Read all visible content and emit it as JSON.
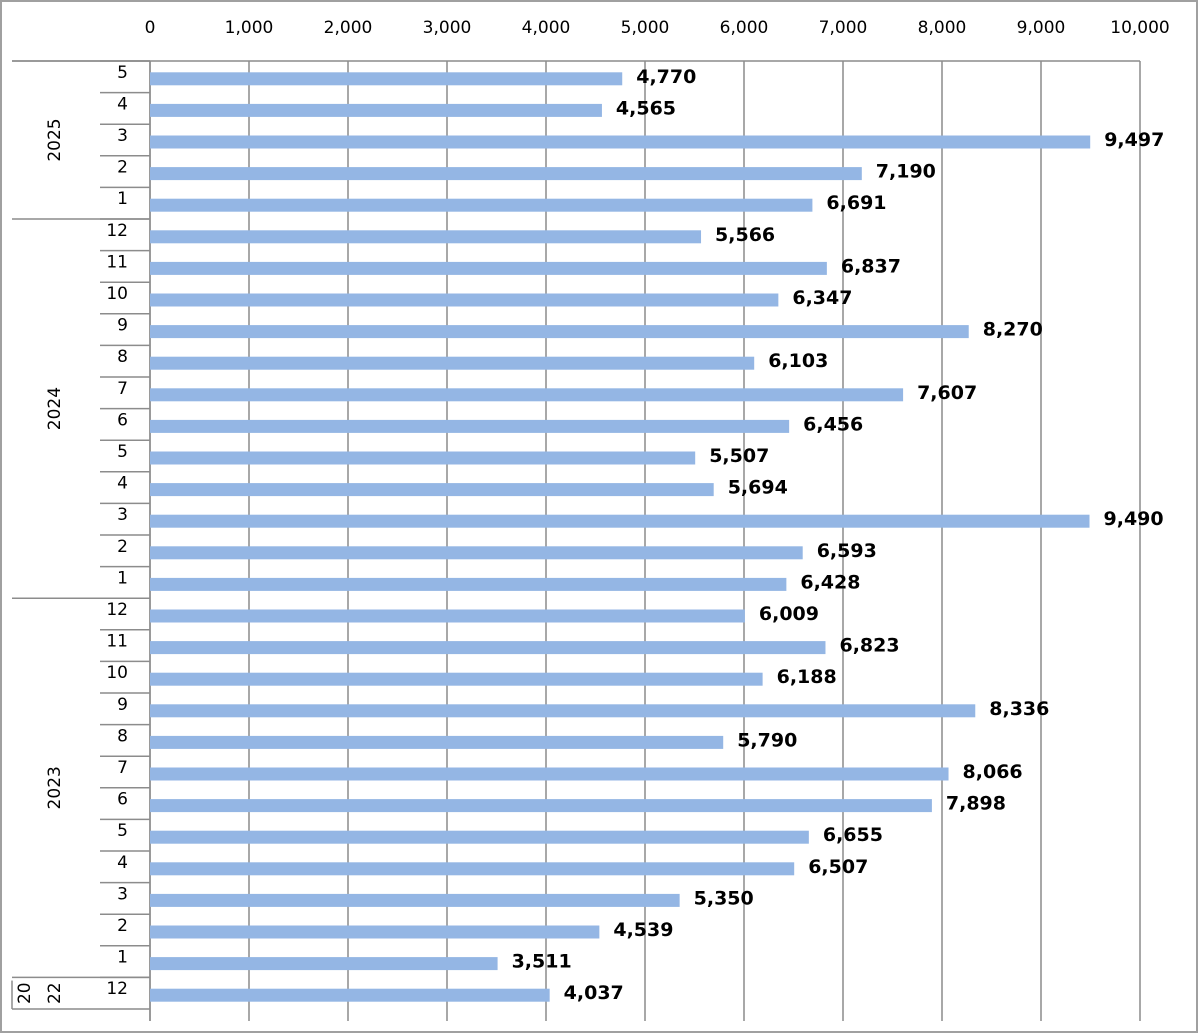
{
  "chart_data": {
    "type": "bar",
    "orientation": "horizontal",
    "xlim": [
      0,
      10000
    ],
    "x_ticks": [
      0,
      1000,
      2000,
      3000,
      4000,
      5000,
      6000,
      7000,
      8000,
      9000,
      10000
    ],
    "x_tick_labels": [
      "0",
      "1,000",
      "2,000",
      "3,000",
      "4,000",
      "5,000",
      "6,000",
      "7,000",
      "8,000",
      "9,000",
      "10,000"
    ],
    "x_axis_position": "top",
    "grid": true,
    "bar_color": "#94b6e4",
    "groups": [
      {
        "year": "2025",
        "year_lines": [
          "2025"
        ],
        "months": [
          "5",
          "4",
          "3",
          "2",
          "1"
        ],
        "values": [
          4770,
          4565,
          9497,
          7190,
          6691
        ],
        "value_labels": [
          "4,770",
          "4,565",
          "9,497",
          "7,190",
          "6,691"
        ]
      },
      {
        "year": "2024",
        "year_lines": [
          "2024"
        ],
        "months": [
          "12",
          "11",
          "10",
          "9",
          "8",
          "7",
          "6",
          "5",
          "4",
          "3",
          "2",
          "1"
        ],
        "values": [
          5566,
          6837,
          6347,
          8270,
          6103,
          7607,
          6456,
          5507,
          5694,
          9490,
          6593,
          6428
        ],
        "value_labels": [
          "5,566",
          "6,837",
          "6,347",
          "8,270",
          "6,103",
          "7,607",
          "6,456",
          "5,507",
          "5,694",
          "9,490",
          "6,593",
          "6,428"
        ]
      },
      {
        "year": "2023",
        "year_lines": [
          "2023"
        ],
        "months": [
          "12",
          "11",
          "10",
          "9",
          "8",
          "7",
          "6",
          "5",
          "4",
          "3",
          "2",
          "1"
        ],
        "values": [
          6009,
          6823,
          6188,
          8336,
          5790,
          8066,
          7898,
          6655,
          6507,
          5350,
          4539,
          3511
        ],
        "value_labels": [
          "6,009",
          "6,823",
          "6,188",
          "8,336",
          "5,790",
          "8,066",
          "7,898",
          "6,655",
          "6,507",
          "5,350",
          "4,539",
          "3,511"
        ]
      },
      {
        "year": "2022",
        "year_lines": [
          "20",
          "22"
        ],
        "months": [
          "12"
        ],
        "values": [
          4037
        ],
        "value_labels": [
          "4,037"
        ]
      }
    ]
  }
}
